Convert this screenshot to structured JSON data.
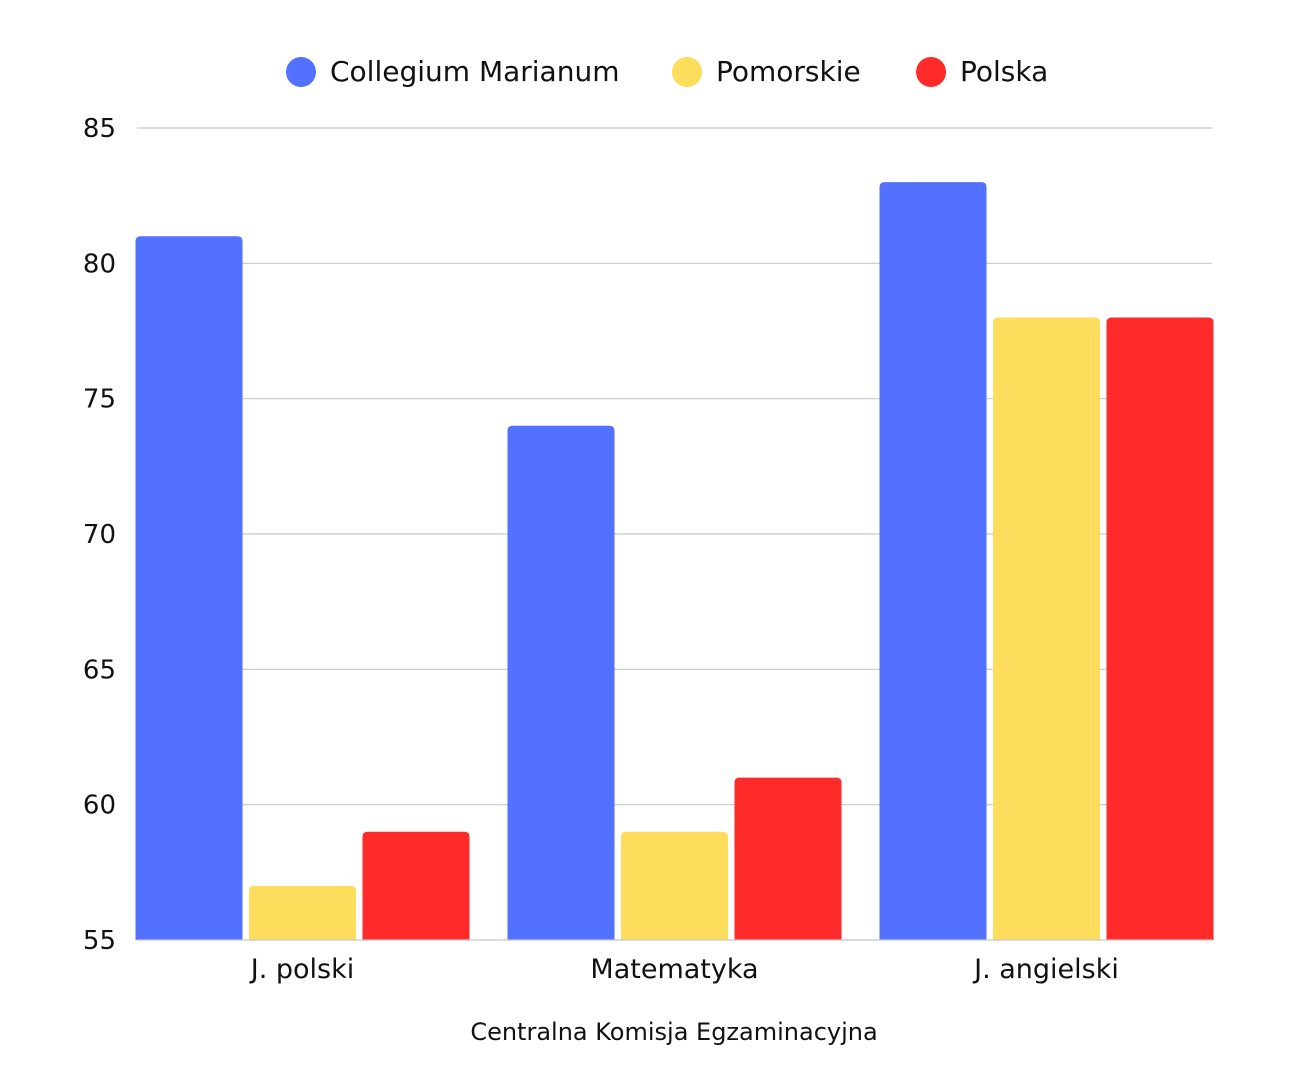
{
  "chart_data": {
    "type": "bar",
    "categories": [
      "J. polski",
      "Matematyka",
      "J. angielski"
    ],
    "series": [
      {
        "name": "Collegium Marianum",
        "color": "#5271ff",
        "values": [
          81,
          74,
          83
        ]
      },
      {
        "name": "Pomorskie",
        "color": "#fedd5c",
        "values": [
          57,
          59,
          78
        ]
      },
      {
        "name": "Polska",
        "color": "#ff2a2a",
        "values": [
          59,
          61,
          78
        ]
      }
    ],
    "xlabel": "Centralna Komisja Egzaminacyjna",
    "ylabel": "",
    "title": "",
    "ylim": [
      55,
      85
    ],
    "yticks": [
      55,
      60,
      65,
      70,
      75,
      80,
      85
    ],
    "grid": true,
    "legend_position": "top"
  }
}
